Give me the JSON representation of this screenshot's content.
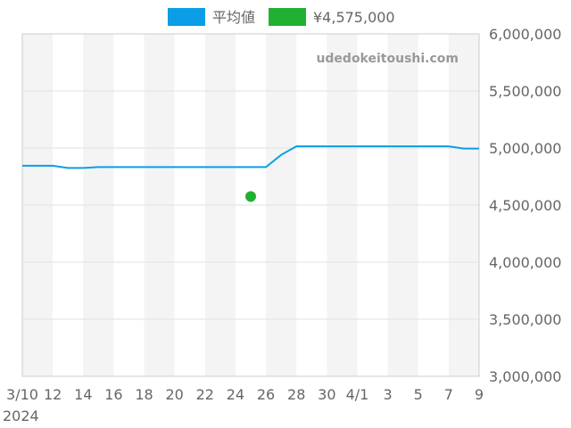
{
  "chart_data": {
    "type": "line",
    "watermark": "udedokeitoushi.com",
    "legend_position": "top",
    "grid": true,
    "ylim": [
      3000000,
      6000000
    ],
    "y_ticks": [
      "3,000,000",
      "3,500,000",
      "4,000,000",
      "4,500,000",
      "5,000,000",
      "5,500,000",
      "6,000,000"
    ],
    "y_tick_values": [
      3000000,
      3500000,
      4000000,
      4500000,
      5000000,
      5500000,
      6000000
    ],
    "x_ticks": [
      "3/10",
      "12",
      "14",
      "16",
      "18",
      "20",
      "22",
      "24",
      "26",
      "28",
      "30",
      "4/1",
      "3",
      "5",
      "7",
      "9"
    ],
    "x_tick_year": "2024",
    "x_dates": [
      "2024-03-10",
      "2024-03-11",
      "2024-03-12",
      "2024-03-13",
      "2024-03-14",
      "2024-03-15",
      "2024-03-16",
      "2024-03-17",
      "2024-03-18",
      "2024-03-19",
      "2024-03-20",
      "2024-03-21",
      "2024-03-22",
      "2024-03-23",
      "2024-03-24",
      "2024-03-25",
      "2024-03-26",
      "2024-03-27",
      "2024-03-28",
      "2024-03-29",
      "2024-03-30",
      "2024-03-31",
      "2024-04-01",
      "2024-04-02",
      "2024-04-03",
      "2024-04-04",
      "2024-04-05",
      "2024-04-06",
      "2024-04-07",
      "2024-04-08",
      "2024-04-09"
    ],
    "series": [
      {
        "name": "平均値",
        "color": "#0a9ee6",
        "type": "line",
        "values": [
          4845000,
          4845000,
          4845000,
          4825000,
          4825000,
          4833000,
          4833000,
          4833000,
          4833000,
          4833000,
          4833000,
          4833000,
          4833000,
          4833000,
          4833000,
          4833000,
          4833000,
          4940000,
          5015000,
          5015000,
          5015000,
          5015000,
          5015000,
          5015000,
          5015000,
          5015000,
          5015000,
          5015000,
          5015000,
          4995000,
          4995000
        ]
      },
      {
        "name": "¥4,575,000",
        "color": "#22b033",
        "type": "scatter",
        "points": [
          {
            "x": "2024-03-25",
            "y": 4575000
          }
        ]
      }
    ],
    "stripe_color": "#f4f4f4"
  }
}
